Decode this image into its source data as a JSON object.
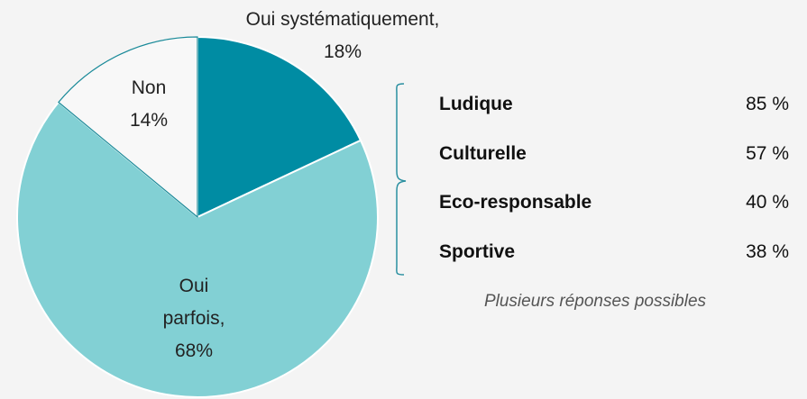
{
  "chart_data": [
    {
      "type": "pie",
      "categories": [
        "Oui systématiquement,",
        "Oui parfois,",
        "Non"
      ],
      "values": [
        18,
        68,
        14
      ],
      "value_labels": [
        "18%",
        "68%",
        "14%"
      ],
      "colors": [
        "#008ca3",
        "#82d0d4",
        "#f8f8f8"
      ],
      "edge_color": "#1a8a99"
    },
    {
      "type": "list",
      "categories": [
        "Ludique",
        "Culturelle",
        "Eco-responsable",
        "Sportive"
      ],
      "values": [
        85,
        57,
        40,
        38
      ],
      "value_labels": [
        "85 %",
        "57 %",
        "40 %",
        "38 %"
      ],
      "note": "Plusieurs réponses possibles"
    }
  ]
}
